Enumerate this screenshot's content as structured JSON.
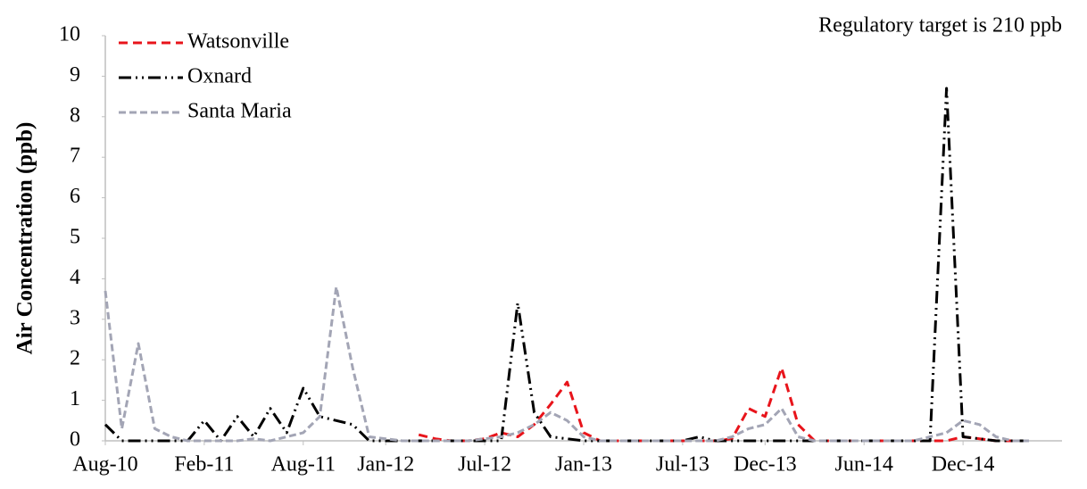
{
  "chart_data": {
    "type": "line",
    "annotation": "Regulatory target is 210 ppb",
    "y_label": "Air Concentration (ppb)",
    "x": [
      "2010-08",
      "2010-09",
      "2010-10",
      "2010-11",
      "2010-12",
      "2011-01",
      "2011-02",
      "2011-03",
      "2011-04",
      "2011-05",
      "2011-06",
      "2011-07",
      "2011-08",
      "2011-09",
      "2011-10",
      "2011-11",
      "2011-12",
      "2012-01",
      "2012-02",
      "2012-03",
      "2012-04",
      "2012-05",
      "2012-06",
      "2012-07",
      "2012-08",
      "2012-09",
      "2012-10",
      "2012-11",
      "2012-12",
      "2013-01",
      "2013-02",
      "2013-03",
      "2013-04",
      "2013-05",
      "2013-06",
      "2013-07",
      "2013-08",
      "2013-09",
      "2013-10",
      "2013-11",
      "2013-12",
      "2014-01",
      "2014-02",
      "2014-03",
      "2014-04",
      "2014-05",
      "2014-06",
      "2014-07",
      "2014-08",
      "2014-09",
      "2014-10",
      "2014-11",
      "2014-12",
      "2015-01",
      "2015-02",
      "2015-03",
      "2015-04"
    ],
    "series": [
      {
        "name": "Watsonville",
        "color": "#e8141b",
        "dash": "10,6",
        "values": [
          null,
          null,
          null,
          null,
          null,
          null,
          null,
          null,
          null,
          null,
          null,
          null,
          null,
          null,
          null,
          null,
          null,
          null,
          null,
          0.15,
          0.05,
          0,
          0,
          0.05,
          0.2,
          0.1,
          0.4,
          0.9,
          1.45,
          0.2,
          0,
          0,
          0,
          0,
          0,
          0,
          0,
          0,
          0.05,
          0.8,
          0.6,
          1.8,
          0.4,
          0,
          0,
          0,
          0,
          0,
          0,
          0,
          0,
          0,
          0.1,
          0.05,
          0,
          0,
          0
        ]
      },
      {
        "name": "Oxnard",
        "color": "#000000",
        "dash": "14,5,2,5,2,5",
        "values": [
          0.4,
          0,
          0,
          0,
          0,
          0,
          0.5,
          0,
          0.6,
          0.1,
          0.8,
          0.2,
          1.3,
          0.6,
          0.5,
          0.4,
          0,
          0,
          0,
          0,
          0,
          0,
          0,
          0,
          0,
          3.4,
          0.7,
          0.1,
          0.05,
          0,
          0,
          0,
          0,
          0,
          0,
          0,
          0.1,
          0,
          0,
          0,
          0,
          0,
          0,
          0,
          0,
          0,
          0,
          0,
          0,
          0,
          0,
          8.7,
          0.1,
          0.05,
          0,
          0,
          0
        ]
      },
      {
        "name": "Santa Maria",
        "color": "#a3a5b5",
        "dash": "8,4",
        "values": [
          3.7,
          0.3,
          2.4,
          0.3,
          0.1,
          0,
          0,
          0,
          0,
          0.05,
          0,
          0.1,
          0.2,
          0.6,
          3.8,
          1.8,
          0.1,
          0.05,
          0,
          0,
          0,
          0,
          0,
          0.05,
          0.1,
          0.2,
          0.4,
          0.7,
          0.5,
          0.1,
          0,
          0,
          0,
          0,
          0,
          0,
          0,
          0,
          0.1,
          0.3,
          0.4,
          0.8,
          0.1,
          0,
          0,
          0,
          0,
          0,
          0,
          0,
          0.1,
          0.2,
          0.5,
          0.4,
          0.1,
          0,
          0
        ]
      }
    ],
    "xlim": [
      "2010-08",
      "2015-06"
    ],
    "xticks": [
      {
        "value": "2010-08",
        "label": "Aug-10"
      },
      {
        "value": "2011-02",
        "label": "Feb-11"
      },
      {
        "value": "2011-08",
        "label": "Aug-11"
      },
      {
        "value": "2012-01",
        "label": "Jan-12"
      },
      {
        "value": "2012-07",
        "label": "Jul-12"
      },
      {
        "value": "2013-01",
        "label": "Jan-13"
      },
      {
        "value": "2013-07",
        "label": "Jul-13"
      },
      {
        "value": "2013-12",
        "label": "Dec-13"
      },
      {
        "value": "2014-06",
        "label": "Jun-14"
      },
      {
        "value": "2014-12",
        "label": "Dec-14"
      }
    ],
    "ylim": [
      0,
      10
    ],
    "yticks": [
      0,
      1,
      2,
      3,
      4,
      5,
      6,
      7,
      8,
      9,
      10
    ],
    "grid": false,
    "legend": "top-left"
  }
}
